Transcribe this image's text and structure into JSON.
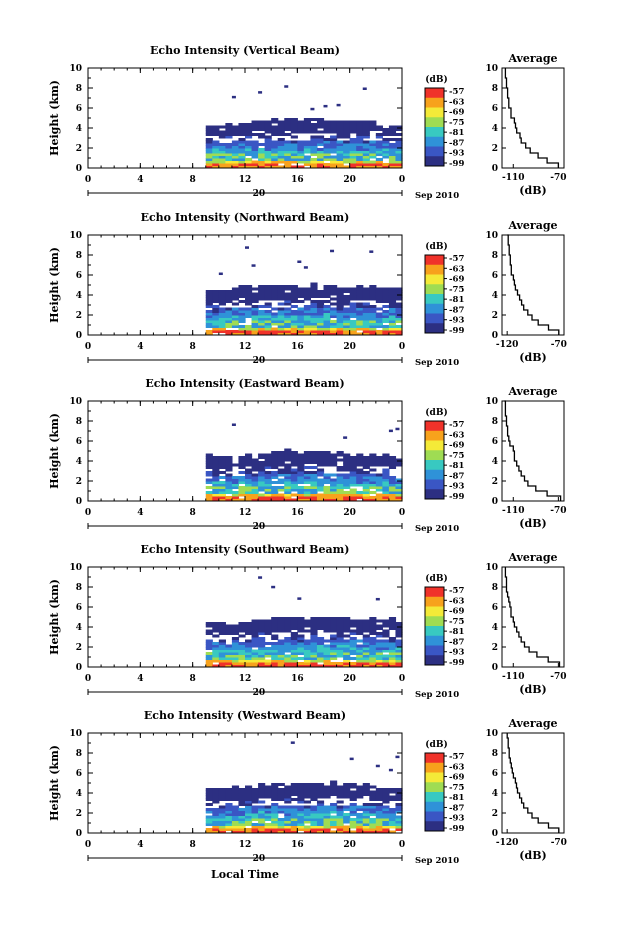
{
  "figure": {
    "xlabel": "Local Time",
    "ylabel": "Height (km)",
    "date_label": "Sep 2010",
    "colorbar_unit": "(dB)",
    "colorbar_ticks": [
      "-57",
      "-63",
      "-69",
      "-75",
      "-81",
      "-87",
      "-93",
      "-99"
    ],
    "colorbar_colors": [
      "#f0322a",
      "#f7a21c",
      "#f4ea38",
      "#9fdc53",
      "#38c9c1",
      "#2f92d8",
      "#3a56c4",
      "#2c2f82"
    ],
    "day_marker": "20",
    "xticks": [
      "0",
      "4",
      "8",
      "12",
      "16",
      "20",
      "0"
    ],
    "yticks": [
      "0",
      "2",
      "4",
      "6",
      "8",
      "10"
    ],
    "profile_title": "Average",
    "profile_xlabel": "(dB)"
  },
  "chart_data": [
    {
      "type": "heatmap",
      "title": "Echo Intensity (Vertical Beam)",
      "xlabel": "Local Time",
      "ylabel": "Height (km)",
      "xlim": [
        0,
        24
      ],
      "ylim": [
        0,
        10
      ],
      "data_start_hour": 9,
      "echo_top_km": [
        4.2,
        4.2,
        4.1,
        4.3,
        4.2,
        4.5,
        4.5,
        4.6,
        4.7,
        4.6,
        4.8,
        4.7,
        4.9,
        4.8,
        4.7,
        4.8,
        4.8,
        4.8,
        4.7,
        4.6,
        4.7,
        4.7,
        4.7,
        4.7,
        4.6,
        4.6,
        4.4,
        4.2,
        4.2,
        4.2
      ],
      "colorbar": {
        "label": "(dB)",
        "ticks": [
          -57,
          -63,
          -69,
          -75,
          -81,
          -87,
          -93,
          -99
        ]
      },
      "profile": {
        "title": "Average",
        "xlabel": "(dB)",
        "xticks": [
          "-110",
          "-70"
        ],
        "xlim": [
          -120,
          -65
        ],
        "height_km": [
          0,
          0.5,
          1,
          1.5,
          2,
          2.5,
          3,
          3.5,
          4,
          4.5,
          5,
          5.5,
          6,
          6.5,
          7,
          7.5,
          8,
          8.5,
          9,
          9.5,
          10
        ],
        "values_db": [
          -70,
          -80,
          -88,
          -95,
          -99,
          -103,
          -104,
          -107,
          -108,
          -109,
          -112,
          -112,
          -114,
          -114,
          -115,
          -115,
          -116,
          -116,
          -117,
          -117,
          -117
        ]
      }
    },
    {
      "type": "heatmap",
      "title": "Echo Intensity (Northward Beam)",
      "xlabel": "Local Time",
      "ylabel": "Height (km)",
      "xlim": [
        0,
        24
      ],
      "ylim": [
        0,
        10
      ],
      "data_start_hour": 9,
      "echo_top_km": [
        4.4,
        4.5,
        4.4,
        4.5,
        4.7,
        4.9,
        4.8,
        4.7,
        4.9,
        4.8,
        4.9,
        4.8,
        4.9,
        4.8,
        4.7,
        5.0,
        5.1,
        4.9,
        4.9,
        4.8,
        4.7,
        4.7,
        4.7,
        4.8,
        4.6,
        4.8,
        4.7,
        4.6,
        4.7,
        4.6
      ],
      "colorbar": {
        "label": "(dB)",
        "ticks": [
          -57,
          -63,
          -69,
          -75,
          -81,
          -87,
          -93,
          -99
        ]
      },
      "profile": {
        "title": "Average",
        "xlabel": "(dB)",
        "xticks": [
          "-120",
          "-70"
        ],
        "xlim": [
          -125,
          -65
        ],
        "height_km": [
          0,
          0.5,
          1,
          1.5,
          2,
          2.5,
          3,
          3.5,
          4,
          4.5,
          5,
          5.5,
          6,
          6.5,
          7,
          7.5,
          8,
          8.5,
          9,
          9.5,
          10
        ],
        "values_db": [
          -70,
          -80,
          -90,
          -96,
          -100,
          -104,
          -106,
          -108,
          -110,
          -112,
          -113,
          -114,
          -116,
          -116,
          -117,
          -117,
          -118,
          -118,
          -119,
          -119,
          -120
        ]
      }
    },
    {
      "type": "heatmap",
      "title": "Echo Intensity (Eastward Beam)",
      "xlabel": "Local Time",
      "ylabel": "Height (km)",
      "xlim": [
        0,
        24
      ],
      "ylim": [
        0,
        10
      ],
      "data_start_hour": 9,
      "echo_top_km": [
        4.6,
        4.4,
        4.6,
        4.4,
        4.4,
        4.4,
        4.7,
        4.5,
        4.6,
        4.6,
        4.8,
        4.8,
        5.1,
        4.9,
        4.7,
        5.0,
        5.0,
        4.9,
        4.8,
        4.6,
        4.9,
        4.6,
        4.5,
        4.6,
        4.5,
        4.7,
        4.6,
        4.7,
        4.5,
        4.2
      ],
      "colorbar": {
        "label": "(dB)",
        "ticks": [
          -57,
          -63,
          -69,
          -75,
          -81,
          -87,
          -93,
          -99
        ]
      },
      "profile": {
        "title": "Average",
        "xlabel": "(dB)",
        "xticks": [
          "-110",
          "-70"
        ],
        "xlim": [
          -120,
          -65
        ],
        "height_km": [
          0,
          0.5,
          1,
          1.5,
          2,
          2.5,
          3,
          3.5,
          4,
          4.5,
          5,
          5.5,
          6,
          6.5,
          7,
          7.5,
          8,
          8.5,
          9,
          9.5,
          10
        ],
        "values_db": [
          -68,
          -80,
          -90,
          -97,
          -100,
          -103,
          -105,
          -107,
          -109,
          -109,
          -110,
          -113,
          -114,
          -115,
          -115,
          -116,
          -116,
          -117,
          -117,
          -117,
          -118
        ]
      }
    },
    {
      "type": "heatmap",
      "title": "Echo Intensity (Southward Beam)",
      "xlabel": "Local Time",
      "ylabel": "Height (km)",
      "xlim": [
        0,
        24
      ],
      "ylim": [
        0,
        10
      ],
      "data_start_hour": 9,
      "echo_top_km": [
        4.3,
        4.3,
        4.4,
        4.2,
        4.5,
        4.4,
        4.4,
        4.7,
        4.7,
        4.7,
        4.9,
        4.8,
        4.8,
        4.8,
        4.8,
        4.7,
        4.8,
        5.0,
        4.8,
        4.8,
        5.0,
        4.9,
        4.7,
        4.6,
        4.6,
        4.8,
        4.6,
        4.6,
        4.8,
        4.5
      ],
      "colorbar": {
        "label": "(dB)",
        "ticks": [
          -57,
          -63,
          -69,
          -75,
          -81,
          -87,
          -93,
          -99
        ]
      },
      "profile": {
        "title": "Average",
        "xlabel": "(dB)",
        "xticks": [
          "-110",
          "-70"
        ],
        "xlim": [
          -120,
          -65
        ],
        "height_km": [
          0,
          0.5,
          1,
          1.5,
          2,
          2.5,
          3,
          3.5,
          4,
          4.5,
          5,
          5.5,
          6,
          6.5,
          7,
          7.5,
          8,
          8.5,
          9,
          9.5,
          10
        ],
        "values_db": [
          -69,
          -79,
          -89,
          -96,
          -100,
          -103,
          -105,
          -107,
          -109,
          -110,
          -112,
          -112,
          -113,
          -114,
          -115,
          -116,
          -116,
          -116,
          -117,
          -117,
          -117
        ]
      }
    },
    {
      "type": "heatmap",
      "title": "Echo Intensity (Westward Beam)",
      "xlabel": "Local Time",
      "ylabel": "Height (km)",
      "xlim": [
        0,
        24
      ],
      "ylim": [
        0,
        10
      ],
      "data_start_hour": 9,
      "echo_top_km": [
        4.5,
        4.5,
        4.4,
        4.5,
        4.6,
        4.5,
        4.6,
        4.6,
        4.8,
        4.6,
        4.9,
        5.0,
        4.8,
        4.9,
        4.8,
        4.8,
        4.8,
        4.8,
        4.7,
        5.1,
        4.7,
        4.8,
        5.0,
        4.7,
        4.8,
        4.7,
        4.5,
        4.5,
        4.5,
        4.4
      ],
      "colorbar": {
        "label": "(dB)",
        "ticks": [
          -57,
          -63,
          -69,
          -75,
          -81,
          -87,
          -93,
          -99
        ]
      },
      "profile": {
        "title": "Average",
        "xlabel": "(dB)",
        "xticks": [
          "-120",
          "-70"
        ],
        "xlim": [
          -125,
          -65
        ],
        "height_km": [
          0,
          0.5,
          1,
          1.5,
          2,
          2.5,
          3,
          3.5,
          4,
          4.5,
          5,
          5.5,
          6,
          6.5,
          7,
          7.5,
          8,
          8.5,
          9,
          9.5,
          10
        ],
        "values_db": [
          -70,
          -80,
          -90,
          -96,
          -100,
          -104,
          -106,
          -108,
          -110,
          -111,
          -112,
          -114,
          -115,
          -116,
          -117,
          -118,
          -118,
          -119,
          -119,
          -120,
          -120
        ]
      }
    }
  ]
}
